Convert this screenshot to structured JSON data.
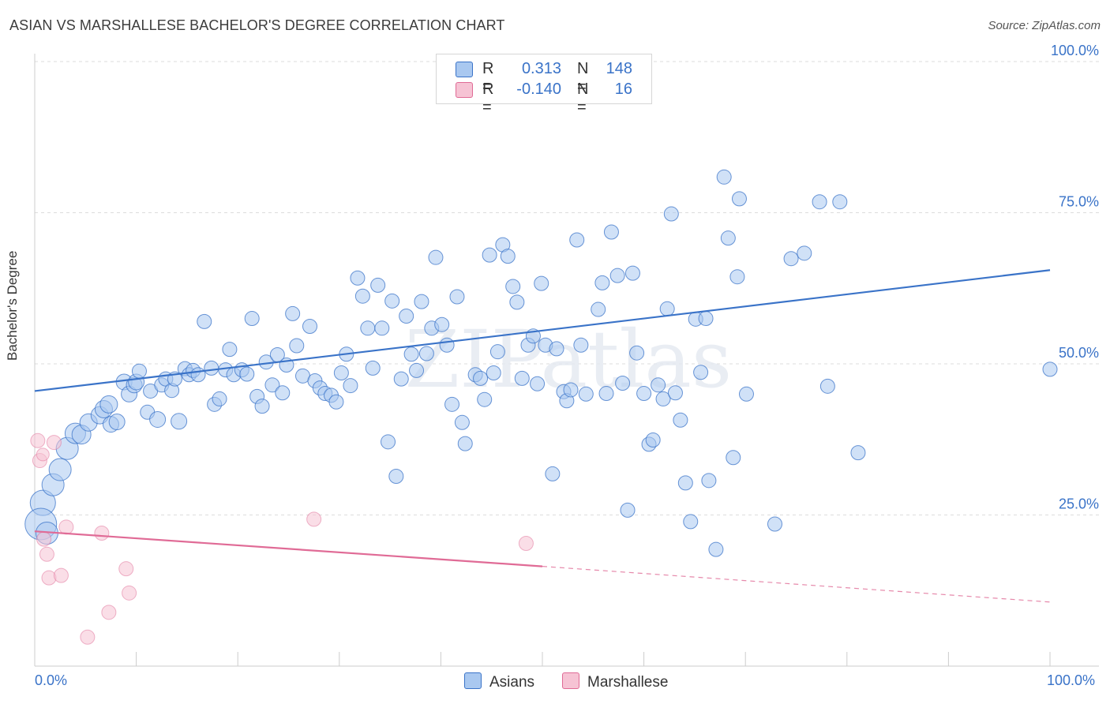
{
  "title": "ASIAN VS MARSHALLESE BACHELOR'S DEGREE CORRELATION CHART",
  "source": "Source: ZipAtlas.com",
  "watermark": "ZIPatlas",
  "colors": {
    "blue": "#3a73c8",
    "pink": "#e06b96",
    "blue_fill": "#a9c8f0",
    "pink_fill": "#f6c3d4",
    "grid": "#dddddd"
  },
  "legend": {
    "rows": [
      {
        "r_label": "R =",
        "r_value": "0.313",
        "n_label": "N =",
        "n_value": "148",
        "color": "#a9c8f0"
      },
      {
        "r_label": "R =",
        "r_value": "-0.140",
        "n_label": "N =",
        "n_value": "16",
        "color": "#f6c3d4"
      }
    ]
  },
  "bottom_legend": [
    {
      "label": "Asians",
      "color": "#a9c8f0"
    },
    {
      "label": "Marshallese",
      "color": "#f6c3d4"
    }
  ],
  "x_axis": {
    "left_label": "0.0%",
    "right_label": "100.0%"
  },
  "chart_data": {
    "type": "scatter",
    "ylabel": "Bachelor's Degree",
    "xlim": [
      0,
      100
    ],
    "ylim": [
      0,
      100
    ],
    "y_ticks": [
      {
        "value": 25,
        "label": "25.0%"
      },
      {
        "value": 50,
        "label": "50.0%"
      },
      {
        "value": 75,
        "label": "75.0%"
      },
      {
        "value": 100,
        "label": "100.0%"
      }
    ],
    "grid": true,
    "series": [
      {
        "name": "Asians",
        "color": "#3a73c8",
        "trend": {
          "x": [
            0,
            100
          ],
          "y": [
            45.5,
            65.5
          ],
          "style": "solid"
        },
        "points": [
          [
            0.8,
            27,
            16
          ],
          [
            0.6,
            23.5,
            20
          ],
          [
            1.2,
            22,
            14
          ],
          [
            1.8,
            30,
            14
          ],
          [
            2.5,
            32.5,
            14
          ],
          [
            3.2,
            36,
            14
          ],
          [
            4.0,
            38.5,
            13
          ],
          [
            4.6,
            38.3,
            12
          ],
          [
            5.3,
            40.3,
            11
          ],
          [
            6.4,
            41.5,
            11
          ],
          [
            6.8,
            42.5,
            11
          ],
          [
            7.3,
            43.3,
            11
          ],
          [
            7.5,
            40.0,
            10
          ],
          [
            8.1,
            40.4,
            10
          ],
          [
            8.8,
            47.0,
            10
          ],
          [
            9.3,
            45.0,
            10
          ],
          [
            9.8,
            46.5,
            10
          ],
          [
            10.0,
            47.0,
            10
          ],
          [
            10.3,
            48.8,
            9
          ],
          [
            11.1,
            42.0,
            9
          ],
          [
            11.4,
            45.5,
            9
          ],
          [
            12.1,
            40.8,
            10
          ],
          [
            12.5,
            46.5,
            9
          ],
          [
            12.9,
            47.5,
            9
          ],
          [
            13.5,
            45.6,
            9
          ],
          [
            13.8,
            47.5,
            9
          ],
          [
            14.2,
            40.5,
            10
          ],
          [
            14.8,
            49.2,
            9
          ],
          [
            15.2,
            48.2,
            9
          ],
          [
            15.6,
            48.9,
            9
          ],
          [
            16.1,
            48.2,
            9
          ],
          [
            16.7,
            57.0,
            9
          ],
          [
            17.4,
            49.3,
            9
          ],
          [
            17.7,
            43.3,
            9
          ],
          [
            18.2,
            44.2,
            9
          ],
          [
            18.8,
            49.0,
            9
          ],
          [
            19.2,
            52.4,
            9
          ],
          [
            19.6,
            48.2,
            9
          ],
          [
            20.4,
            49.0,
            9
          ],
          [
            20.9,
            48.3,
            9
          ],
          [
            21.4,
            57.5,
            9
          ],
          [
            21.9,
            44.6,
            9
          ],
          [
            22.4,
            43.0,
            9
          ],
          [
            22.8,
            50.3,
            9
          ],
          [
            23.4,
            46.5,
            9
          ],
          [
            23.9,
            51.5,
            9
          ],
          [
            24.4,
            45.2,
            9
          ],
          [
            24.8,
            49.8,
            9
          ],
          [
            25.4,
            58.3,
            9
          ],
          [
            25.8,
            53.0,
            9
          ],
          [
            26.4,
            48.0,
            9
          ],
          [
            27.1,
            56.2,
            9
          ],
          [
            27.6,
            47.2,
            9
          ],
          [
            28.1,
            46.0,
            9
          ],
          [
            28.6,
            45.1,
            9
          ],
          [
            29.2,
            44.8,
            9
          ],
          [
            29.7,
            43.7,
            9
          ],
          [
            30.2,
            48.5,
            9
          ],
          [
            30.7,
            51.6,
            9
          ],
          [
            31.1,
            46.4,
            9
          ],
          [
            31.8,
            64.2,
            9
          ],
          [
            32.3,
            61.2,
            9
          ],
          [
            32.8,
            55.9,
            9
          ],
          [
            33.3,
            49.3,
            9
          ],
          [
            33.8,
            63.0,
            9
          ],
          [
            34.2,
            55.9,
            9
          ],
          [
            34.8,
            37.1,
            9
          ],
          [
            35.2,
            60.4,
            9
          ],
          [
            35.6,
            31.4,
            9
          ],
          [
            36.1,
            47.5,
            9
          ],
          [
            36.6,
            57.9,
            9
          ],
          [
            37.1,
            51.6,
            9
          ],
          [
            37.6,
            48.9,
            9
          ],
          [
            38.1,
            60.3,
            9
          ],
          [
            38.6,
            51.7,
            9
          ],
          [
            39.1,
            55.9,
            9
          ],
          [
            39.5,
            67.6,
            9
          ],
          [
            40.1,
            56.5,
            9
          ],
          [
            40.6,
            53.1,
            9
          ],
          [
            41.1,
            43.3,
            9
          ],
          [
            41.6,
            61.1,
            9
          ],
          [
            42.1,
            40.3,
            9
          ],
          [
            42.4,
            36.8,
            9
          ],
          [
            43.4,
            48.2,
            9
          ],
          [
            43.9,
            47.6,
            9
          ],
          [
            44.3,
            44.1,
            9
          ],
          [
            44.8,
            68.0,
            9
          ],
          [
            45.2,
            48.5,
            9
          ],
          [
            45.6,
            52.0,
            9
          ],
          [
            46.1,
            69.7,
            9
          ],
          [
            46.6,
            67.8,
            9
          ],
          [
            47.1,
            62.8,
            9
          ],
          [
            47.5,
            60.2,
            9
          ],
          [
            48.0,
            47.6,
            9
          ],
          [
            48.6,
            53.1,
            9
          ],
          [
            49.1,
            54.6,
            9
          ],
          [
            49.5,
            46.7,
            9
          ],
          [
            49.9,
            63.3,
            9
          ],
          [
            50.3,
            53.1,
            9
          ],
          [
            51.0,
            31.8,
            9
          ],
          [
            51.4,
            52.5,
            9
          ],
          [
            52.1,
            45.4,
            9
          ],
          [
            52.4,
            43.9,
            9
          ],
          [
            52.8,
            45.7,
            9
          ],
          [
            53.4,
            70.5,
            9
          ],
          [
            53.8,
            53.1,
            9
          ],
          [
            54.3,
            45.0,
            9
          ],
          [
            55.5,
            59.0,
            9
          ],
          [
            55.9,
            63.4,
            9
          ],
          [
            56.3,
            45.1,
            9
          ],
          [
            56.8,
            71.8,
            9
          ],
          [
            57.4,
            64.6,
            9
          ],
          [
            57.9,
            46.8,
            9
          ],
          [
            58.4,
            25.8,
            9
          ],
          [
            58.9,
            65.0,
            9
          ],
          [
            59.3,
            51.8,
            9
          ],
          [
            60.0,
            45.1,
            9
          ],
          [
            60.5,
            36.7,
            9
          ],
          [
            60.9,
            37.4,
            9
          ],
          [
            61.4,
            46.5,
            9
          ],
          [
            61.9,
            44.2,
            9
          ],
          [
            62.3,
            59.1,
            9
          ],
          [
            62.7,
            74.8,
            9
          ],
          [
            63.1,
            45.2,
            9
          ],
          [
            63.6,
            40.7,
            9
          ],
          [
            64.1,
            30.3,
            9
          ],
          [
            64.6,
            23.9,
            9
          ],
          [
            65.1,
            57.4,
            9
          ],
          [
            65.6,
            48.6,
            9
          ],
          [
            66.1,
            57.5,
            9
          ],
          [
            66.4,
            30.7,
            9
          ],
          [
            67.1,
            19.3,
            9
          ],
          [
            67.9,
            80.9,
            9
          ],
          [
            68.3,
            70.8,
            9
          ],
          [
            68.8,
            34.5,
            9
          ],
          [
            69.2,
            64.4,
            9
          ],
          [
            69.4,
            77.3,
            9
          ],
          [
            70.1,
            45.0,
            9
          ],
          [
            72.9,
            23.5,
            9
          ],
          [
            74.5,
            67.4,
            9
          ],
          [
            75.8,
            68.3,
            9
          ],
          [
            77.3,
            76.8,
            9
          ],
          [
            78.1,
            46.3,
            9
          ],
          [
            79.3,
            76.8,
            9
          ],
          [
            81.1,
            35.3,
            9
          ],
          [
            100.0,
            49.1,
            9
          ]
        ]
      },
      {
        "name": "Marshallese",
        "color": "#e06b96",
        "trend": {
          "x": [
            0,
            50
          ],
          "y": [
            22.3,
            16.5
          ],
          "style": "solid",
          "dashed_x": [
            50,
            100
          ],
          "dashed_y": [
            16.5,
            10.6
          ]
        },
        "points": [
          [
            0.3,
            37.3,
            9
          ],
          [
            0.5,
            34.0,
            9
          ],
          [
            0.8,
            35.0,
            8
          ],
          [
            0.9,
            21.0,
            9
          ],
          [
            1.2,
            18.5,
            9
          ],
          [
            1.4,
            14.6,
            9
          ],
          [
            1.9,
            37.0,
            9
          ],
          [
            2.6,
            15.0,
            9
          ],
          [
            3.1,
            23.0,
            9
          ],
          [
            5.2,
            4.8,
            9
          ],
          [
            6.6,
            22.0,
            9
          ],
          [
            7.3,
            8.9,
            9
          ],
          [
            9.0,
            16.1,
            9
          ],
          [
            9.3,
            12.1,
            9
          ],
          [
            27.5,
            24.3,
            9
          ],
          [
            48.4,
            20.3,
            9
          ]
        ]
      }
    ]
  }
}
